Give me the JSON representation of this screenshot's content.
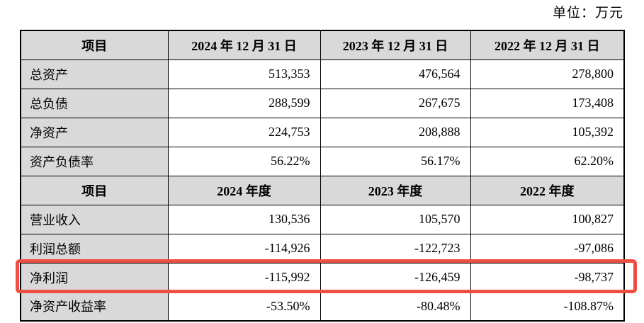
{
  "unit_label": "单位：万元",
  "colors": {
    "header_bg": "#d9d9d9",
    "highlight_red": "#ee4f43",
    "border": "#000000"
  },
  "balance_sheet": {
    "headers": [
      "项目",
      "2024 年 12 月 31 日",
      "2023 年 12 月 31 日",
      "2022 年 12 月 31 日"
    ],
    "rows": [
      {
        "label": "总资产",
        "values": [
          "513,353",
          "476,564",
          "278,800"
        ]
      },
      {
        "label": "总负债",
        "values": [
          "288,599",
          "267,675",
          "173,408"
        ]
      },
      {
        "label": "净资产",
        "values": [
          "224,753",
          "208,888",
          "105,392"
        ]
      },
      {
        "label": "资产负债率",
        "values": [
          "56.22%",
          "56.17%",
          "62.20%"
        ]
      }
    ]
  },
  "income_statement": {
    "headers": [
      "项目",
      "2024 年度",
      "2023 年度",
      "2022 年度"
    ],
    "rows": [
      {
        "label": "营业收入",
        "values": [
          "130,536",
          "105,570",
          "100,827"
        ]
      },
      {
        "label": "利润总额",
        "values": [
          "-114,926",
          "-122,723",
          "-97,086"
        ]
      },
      {
        "label": "净利润",
        "values": [
          "-115,992",
          "-126,459",
          "-98,737"
        ],
        "highlighted": true
      },
      {
        "label": "净资产收益率",
        "values": [
          "-53.50%",
          "-80.48%",
          "-108.87%"
        ]
      }
    ]
  }
}
